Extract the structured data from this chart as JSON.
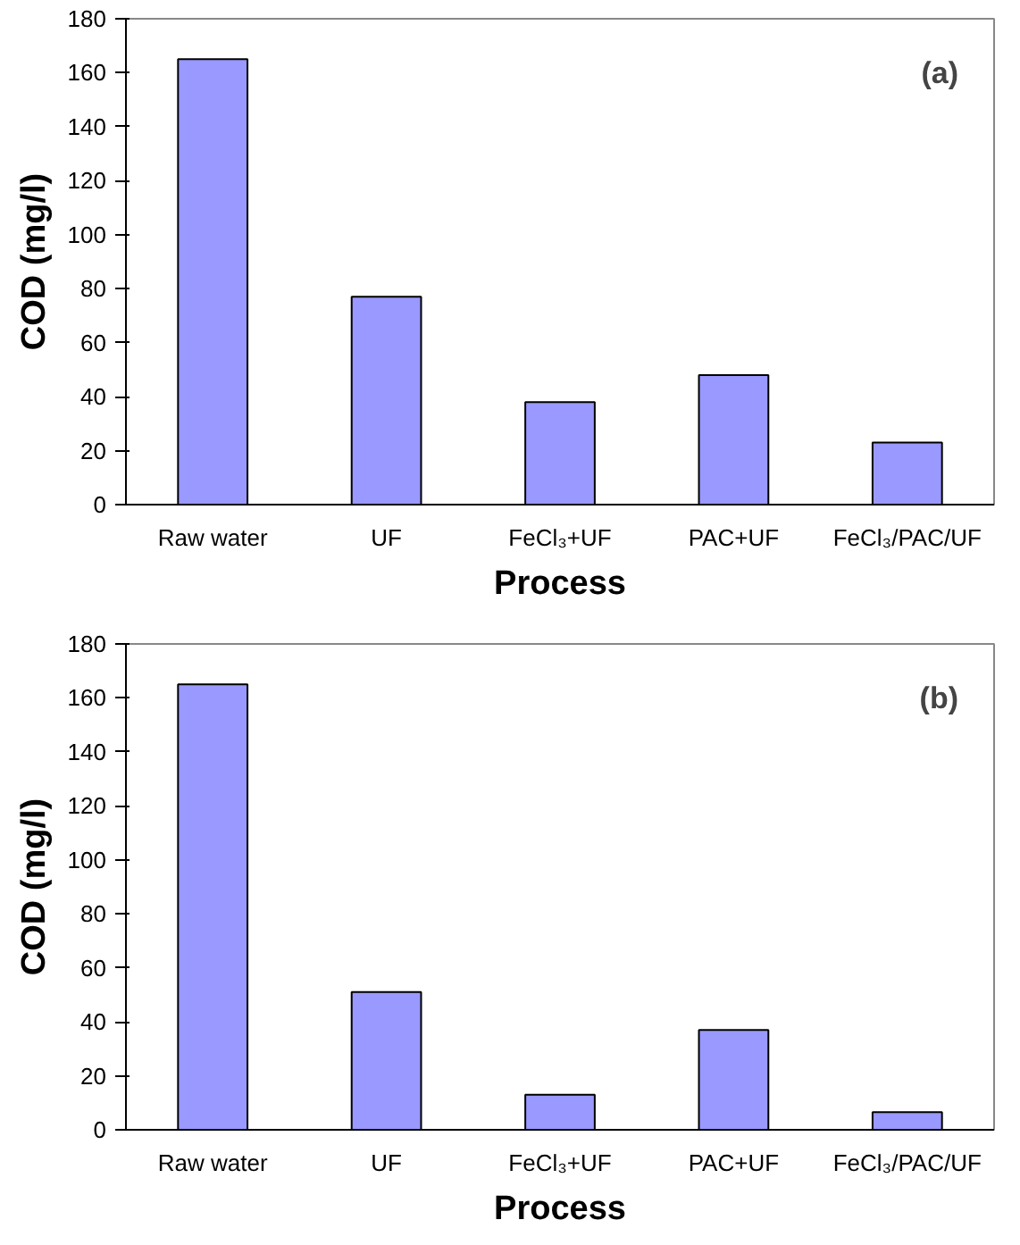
{
  "chart_data": [
    {
      "type": "bar",
      "xlabel": "Process",
      "ylabel": "COD (mg/l)",
      "annotations": [
        "(a)"
      ],
      "categories": [
        "Raw water",
        "UF",
        "FeCl₃+UF",
        "PAC+UF",
        "FeCl₃/PAC/UF"
      ],
      "values": [
        165,
        77,
        38,
        48,
        23
      ],
      "color": "#9999ff",
      "ylim": [
        0,
        180
      ],
      "yticks": [
        0,
        20,
        40,
        60,
        80,
        100,
        120,
        140,
        160,
        180
      ]
    },
    {
      "type": "bar",
      "xlabel": "Process",
      "ylabel": "COD (mg/l)",
      "annotations": [
        "(b)"
      ],
      "categories": [
        "Raw water",
        "UF",
        "FeCl₃+UF",
        "PAC+UF",
        "FeCl₃/PAC/UF"
      ],
      "values": [
        165,
        51,
        13,
        37,
        6.5
      ],
      "color": "#9999ff",
      "ylim": [
        0,
        180
      ],
      "yticks": [
        0,
        20,
        40,
        60,
        80,
        100,
        120,
        140,
        160,
        180
      ]
    }
  ]
}
